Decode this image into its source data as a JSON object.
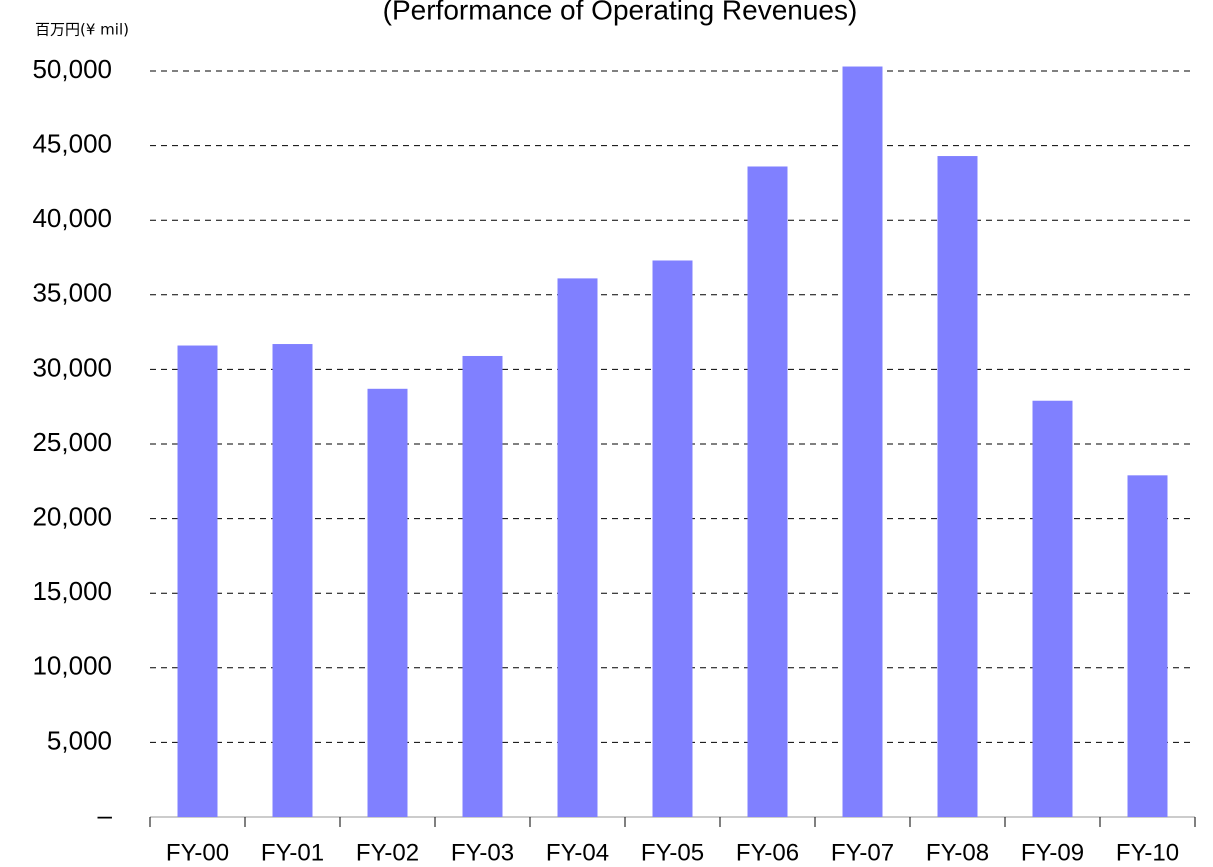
{
  "chart_data": {
    "type": "bar",
    "title": "(Performance of Operating Revenues)",
    "y_axis_label": "百万円(¥ mil)",
    "categories": [
      "FY-00",
      "FY-01",
      "FY-02",
      "FY-03",
      "FY-04",
      "FY-05",
      "FY-06",
      "FY-07",
      "FY-08",
      "FY-09",
      "FY-10"
    ],
    "values": [
      31600,
      31700,
      28700,
      30900,
      36100,
      37300,
      43600,
      50300,
      44300,
      27900,
      22900
    ],
    "color": "#8080ff",
    "ylim": [
      0,
      50000
    ],
    "yticks": [
      {
        "value": 0,
        "label": "–"
      },
      {
        "value": 5000,
        "label": "5,000"
      },
      {
        "value": 10000,
        "label": "10,000"
      },
      {
        "value": 15000,
        "label": "15,000"
      },
      {
        "value": 20000,
        "label": "20,000"
      },
      {
        "value": 25000,
        "label": "25,000"
      },
      {
        "value": 30000,
        "label": "30,000"
      },
      {
        "value": 35000,
        "label": "35,000"
      },
      {
        "value": 40000,
        "label": "40,000"
      },
      {
        "value": 45000,
        "label": "45,000"
      },
      {
        "value": 50000,
        "label": "50,000"
      }
    ],
    "grid": true
  }
}
